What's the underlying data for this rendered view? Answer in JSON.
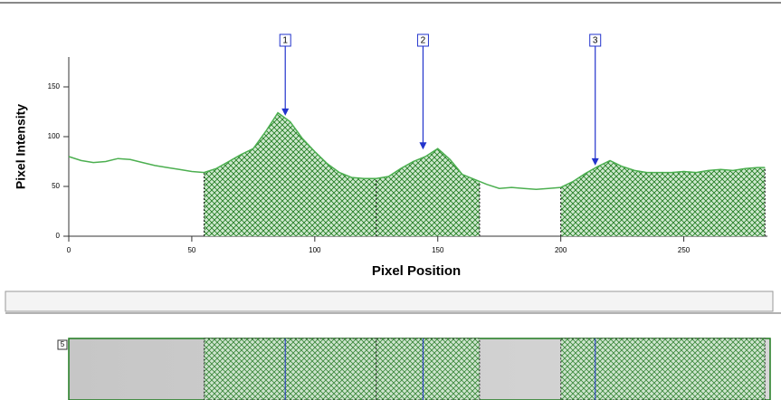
{
  "chart_data": {
    "type": "line",
    "x_label": "Pixel Position",
    "y_label": "Pixel Intensity",
    "x": [
      0,
      5,
      10,
      15,
      20,
      25,
      30,
      35,
      40,
      45,
      50,
      55,
      60,
      65,
      70,
      75,
      80,
      85,
      90,
      95,
      100,
      105,
      110,
      115,
      120,
      125,
      130,
      135,
      140,
      145,
      150,
      155,
      160,
      165,
      170,
      175,
      180,
      185,
      190,
      195,
      200,
      205,
      210,
      215,
      220,
      225,
      230,
      235,
      240,
      245,
      250,
      255,
      260,
      265,
      270,
      275,
      280,
      283
    ],
    "values": [
      80,
      76,
      74,
      75,
      78,
      77,
      74,
      71,
      69,
      67,
      65,
      64,
      68,
      75,
      82,
      88,
      105,
      124,
      115,
      98,
      85,
      73,
      64,
      59,
      58,
      58,
      60,
      68,
      75,
      80,
      88,
      77,
      62,
      57,
      52,
      48,
      49,
      48,
      47,
      48,
      49,
      55,
      63,
      70,
      76,
      70,
      66,
      64,
      64,
      64,
      65,
      64,
      66,
      67,
      66,
      68,
      69,
      69
    ],
    "color": "#4caf50",
    "regions": [
      [
        55,
        125
      ],
      [
        125,
        167
      ],
      [
        200,
        283
      ]
    ],
    "region_color": "#1e7a1e",
    "annotations": [
      {
        "label": "1",
        "x": 88,
        "y": 121
      },
      {
        "label": "2",
        "x": 144,
        "y": 87
      },
      {
        "label": "3",
        "x": 214,
        "y": 71
      }
    ],
    "annotation_color": "#2233cc",
    "xlim": [
      0,
      284
    ],
    "ylim": [
      0,
      180
    ],
    "xticks": [
      0,
      50,
      100,
      150,
      200,
      250
    ],
    "yticks": [
      0,
      50,
      100,
      150
    ],
    "lane_label": "5"
  }
}
